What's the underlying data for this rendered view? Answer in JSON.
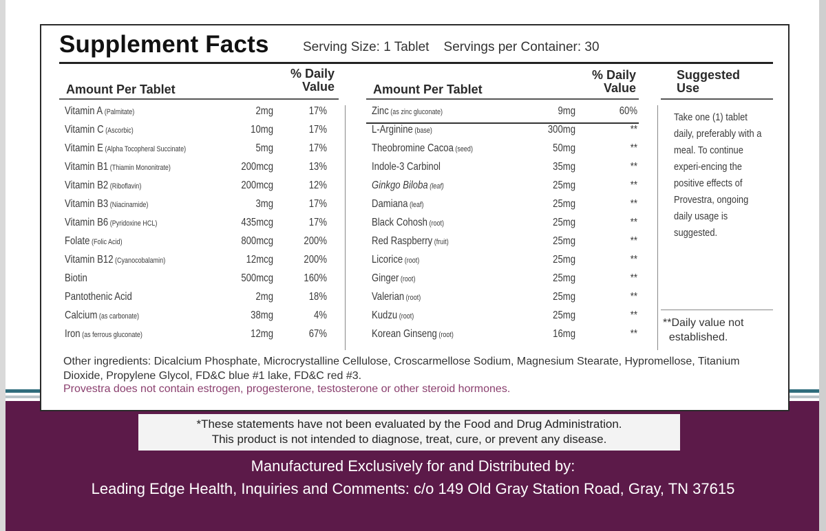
{
  "label": {
    "title": "Supplement Facts",
    "serving_line": "Serving Size: 1 Tablet    Servings per Container: 30"
  },
  "headers": {
    "amount_left": "Amount Per Tablet",
    "dv_left": "% Daily\nValue",
    "amount_right": "Amount Per Tablet",
    "dv_right": "% Daily\nValue",
    "suggested": "Suggested\nUse"
  },
  "left_rows": [
    {
      "name": "Vitamin A",
      "note": "(Palmitate)",
      "amount": "2mg",
      "dv": "17%"
    },
    {
      "name": "Vitamin C",
      "note": "(Ascorbic)",
      "amount": "10mg",
      "dv": "17%"
    },
    {
      "name": "Vitamin E",
      "note": "(Alpha Tocopheral Succinate)",
      "amount": "5mg",
      "dv": "17%"
    },
    {
      "name": "Vitamin B1",
      "note": "(Thiamin Mononitrate)",
      "amount": "200mcg",
      "dv": "13%"
    },
    {
      "name": "Vitamin B2",
      "note": "(Riboflavin)",
      "amount": "200mcg",
      "dv": "12%"
    },
    {
      "name": "Vitamin B3",
      "note": "(Niacinamide)",
      "amount": "3mg",
      "dv": "17%"
    },
    {
      "name": "Vitamin B6",
      "note": "(Pyridoxine HCL)",
      "amount": "435mcg",
      "dv": "17%"
    },
    {
      "name": "Folate",
      "note": "(Folic Acid)",
      "amount": "800mcg",
      "dv": "200%"
    },
    {
      "name": "Vitamin B12",
      "note": "(Cyanocobalamin)",
      "amount": "12mcg",
      "dv": "200%"
    },
    {
      "name": "Biotin",
      "note": "",
      "amount": "500mcg",
      "dv": "160%"
    },
    {
      "name": "Pantothenic Acid",
      "note": "",
      "amount": "2mg",
      "dv": "18%"
    },
    {
      "name": "Calcium",
      "note": "(as carbonate)",
      "amount": "38mg",
      "dv": "4%"
    },
    {
      "name": "Iron",
      "note": "(as ferrous gluconate)",
      "amount": "12mg",
      "dv": "67%"
    }
  ],
  "right_rows": [
    {
      "name": "Zinc",
      "note": "(as zinc gluconate)",
      "amount": "9mg",
      "dv": "60%"
    },
    {
      "name": "L-Arginine",
      "note": "(base)",
      "amount": "300mg",
      "dv": "**"
    },
    {
      "name": "Theobromine Cacoa",
      "note": "(seed)",
      "amount": "50mg",
      "dv": "**"
    },
    {
      "name": "Indole-3 Carbinol",
      "note": "",
      "amount": "35mg",
      "dv": "**"
    },
    {
      "name": "Ginkgo Biloba",
      "note": "(leaf)",
      "amount": "25mg",
      "dv": "**"
    },
    {
      "name": "Damiana",
      "note": "(leaf)",
      "amount": "25mg",
      "dv": "**"
    },
    {
      "name": "Black Cohosh",
      "note": "(root)",
      "amount": "25mg",
      "dv": "**"
    },
    {
      "name": "Red Raspberry",
      "note": "(fruit)",
      "amount": "25mg",
      "dv": "**"
    },
    {
      "name": "Licorice",
      "note": "(root)",
      "amount": "25mg",
      "dv": "**"
    },
    {
      "name": "Ginger",
      "note": "(root)",
      "amount": "25mg",
      "dv": "**"
    },
    {
      "name": "Valerian",
      "note": "(root)",
      "amount": "25mg",
      "dv": "**"
    },
    {
      "name": "Kudzu",
      "note": "(root)",
      "amount": "25mg",
      "dv": "**"
    },
    {
      "name": "Korean Ginseng",
      "note": "(root)",
      "amount": "16mg",
      "dv": "**"
    }
  ],
  "suggested_use": "Take one (1) tablet daily, preferably with a meal. To continue experi-encing the positive effects of Provestra, ongoing daily usage is suggested.",
  "dv_note": "**Daily value not\n  established.",
  "other_ingredients": "Other ingredients: Dicalcium Phosphate, Microcrystalline Cellulose, Croscarmellose Sodium, Magnesium Stearate, Hypromellose, Titanium Dioxide, Propylene Glycol, FD&C blue #1 lake, FD&C red #3.",
  "no_hormones": "Provestra does not contain estrogen, progesterone, testosterone or other steroid hormones.",
  "disclaimer_line1": "*These statements have not been evaluated by the Food and Drug Administration.",
  "disclaimer_line2": "This product is not intended to diagnose, treat, cure, or prevent any disease.",
  "manufacturer_line1": "Manufactured Exclusively for and Distributed by:",
  "manufacturer_line2": "Leading Edge Health, Inquiries and Comments: c/o 149 Old Gray Station Road, Gray, TN 37615",
  "colors": {
    "purple": "#5c1a49",
    "accent_text": "#8a3f6e",
    "teal_stripe": "#2f6d7c"
  }
}
